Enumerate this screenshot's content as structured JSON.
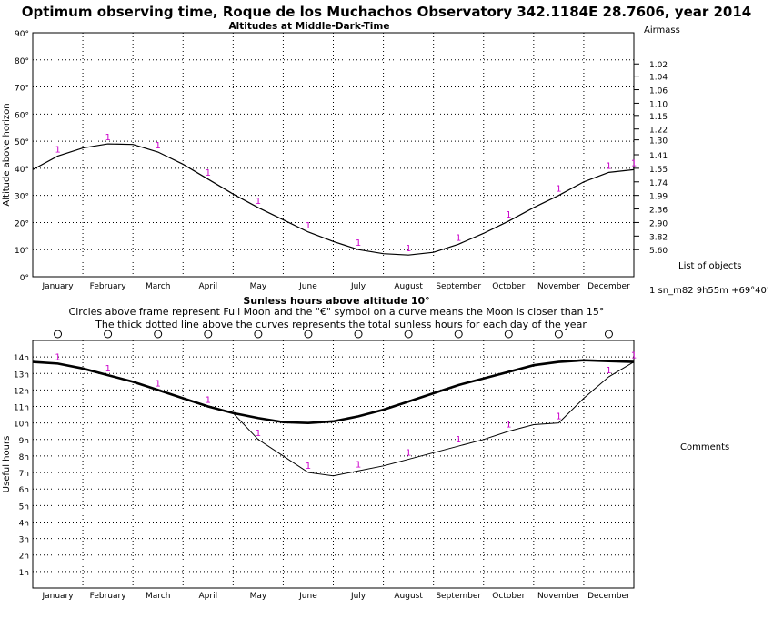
{
  "header": {
    "title": "Optimum observing time, Roque de los Muchachos Observatory 342.1184E  28.7606, year 2014",
    "subtitle_top": "Altitudes at Middle-Dark-Time",
    "airmass_label": "Airmass",
    "list_label": "List of objects",
    "object_label": "1  sn_m82   9h55m  +69°40'",
    "comments_label": "Comments"
  },
  "bottom_titles": {
    "title": "Sunless hours above altitude 10°",
    "line1": "Circles above frame represent Full Moon and the \"€\" symbol on a curve means the Moon is closer than 15°",
    "line2": "The thick dotted line above the curves represents the total sunless hours for each day of the year"
  },
  "chart_data": [
    {
      "type": "line",
      "title": "Altitudes at Middle-Dark-Time",
      "ylabel": "Altitude above horizon",
      "xlabel": "",
      "ylim": [
        0,
        90
      ],
      "xlim": [
        0,
        12
      ],
      "months": [
        "January",
        "February",
        "March",
        "April",
        "May",
        "June",
        "July",
        "August",
        "September",
        "October",
        "November",
        "December"
      ],
      "yticks": [
        "0°",
        "10°",
        "20°",
        "30°",
        "40°",
        "50°",
        "60°",
        "70°",
        "80°",
        "90°"
      ],
      "airmass_ticks": [
        {
          "alt": 78.5,
          "label": "1.02"
        },
        {
          "alt": 74.0,
          "label": "1.04"
        },
        {
          "alt": 69.0,
          "label": "1.06"
        },
        {
          "alt": 64.0,
          "label": "1.10"
        },
        {
          "alt": 59.5,
          "label": "1.15"
        },
        {
          "alt": 54.5,
          "label": "1.22"
        },
        {
          "alt": 50.5,
          "label": "1.30"
        },
        {
          "alt": 45.0,
          "label": "1.41"
        },
        {
          "alt": 40.0,
          "label": "1.55"
        },
        {
          "alt": 35.0,
          "label": "1.74"
        },
        {
          "alt": 30.0,
          "label": "1.99"
        },
        {
          "alt": 25.0,
          "label": "2.36"
        },
        {
          "alt": 20.0,
          "label": "2.90"
        },
        {
          "alt": 15.0,
          "label": "3.82"
        },
        {
          "alt": 10.0,
          "label": "5.60"
        }
      ],
      "series": [
        {
          "marker": "1",
          "x": [
            0,
            0.5,
            1.0,
            1.5,
            2.0,
            2.5,
            3.0,
            3.5,
            4.0,
            4.5,
            5.0,
            5.5,
            6.0,
            6.5,
            7.0,
            7.5,
            8.0,
            8.5,
            9.0,
            9.5,
            10.0,
            10.5,
            11.0,
            11.5,
            12.0
          ],
          "y": [
            39.5,
            44.5,
            47.5,
            49.0,
            48.8,
            46.0,
            41.5,
            36.0,
            30.5,
            25.5,
            21.0,
            16.5,
            13.0,
            10.0,
            8.5,
            8.0,
            9.0,
            12.0,
            16.0,
            20.5,
            25.5,
            30.0,
            35.0,
            38.5,
            39.5
          ]
        }
      ]
    },
    {
      "type": "line",
      "title": "Sunless hours above altitude 10°",
      "ylabel": "Useful hours",
      "xlabel": "",
      "ylim": [
        0,
        15
      ],
      "xlim": [
        0,
        12
      ],
      "months": [
        "January",
        "February",
        "March",
        "April",
        "May",
        "June",
        "July",
        "August",
        "September",
        "October",
        "November",
        "December"
      ],
      "yticks": [
        "1h",
        "2h",
        "3h",
        "4h",
        "5h",
        "6h",
        "7h",
        "8h",
        "9h",
        "10h",
        "11h",
        "12h",
        "13h",
        "14h"
      ],
      "full_moons": [
        0.5,
        1.5,
        2.5,
        3.5,
        4.5,
        5.5,
        6.5,
        7.5,
        8.5,
        9.5,
        10.5,
        11.5
      ],
      "series": [
        {
          "name_visible": false,
          "style": "thick",
          "x": [
            0,
            0.5,
            1.0,
            1.5,
            2.0,
            2.5,
            3.0,
            3.5,
            4.0,
            4.5,
            5.0,
            5.5,
            6.0,
            6.5,
            7.0,
            7.5,
            8.0,
            8.5,
            9.0,
            9.5,
            10.0,
            10.5,
            11.0,
            11.5,
            12.0
          ],
          "y": [
            13.7,
            13.6,
            13.3,
            12.9,
            12.5,
            12.0,
            11.5,
            11.0,
            10.6,
            10.3,
            10.05,
            10.0,
            10.1,
            10.4,
            10.8,
            11.3,
            11.8,
            12.3,
            12.7,
            13.1,
            13.5,
            13.7,
            13.8,
            13.75,
            13.7
          ]
        },
        {
          "marker": "1",
          "x": [
            0,
            0.5,
            1.0,
            1.5,
            2.0,
            2.5,
            3.0,
            3.5,
            4.0,
            4.5,
            5.0,
            5.5,
            6.0,
            6.5,
            7.0,
            7.5,
            8.0,
            8.5,
            9.0,
            9.5,
            10.0,
            10.5,
            11.0,
            11.5,
            12.0
          ],
          "y": [
            13.7,
            13.6,
            13.3,
            12.9,
            12.5,
            12.0,
            11.5,
            11.0,
            10.6,
            9.0,
            8.0,
            7.0,
            6.8,
            7.1,
            7.4,
            7.8,
            8.2,
            8.6,
            9.0,
            9.5,
            9.9,
            10.0,
            11.5,
            12.8,
            13.7
          ]
        }
      ]
    }
  ]
}
